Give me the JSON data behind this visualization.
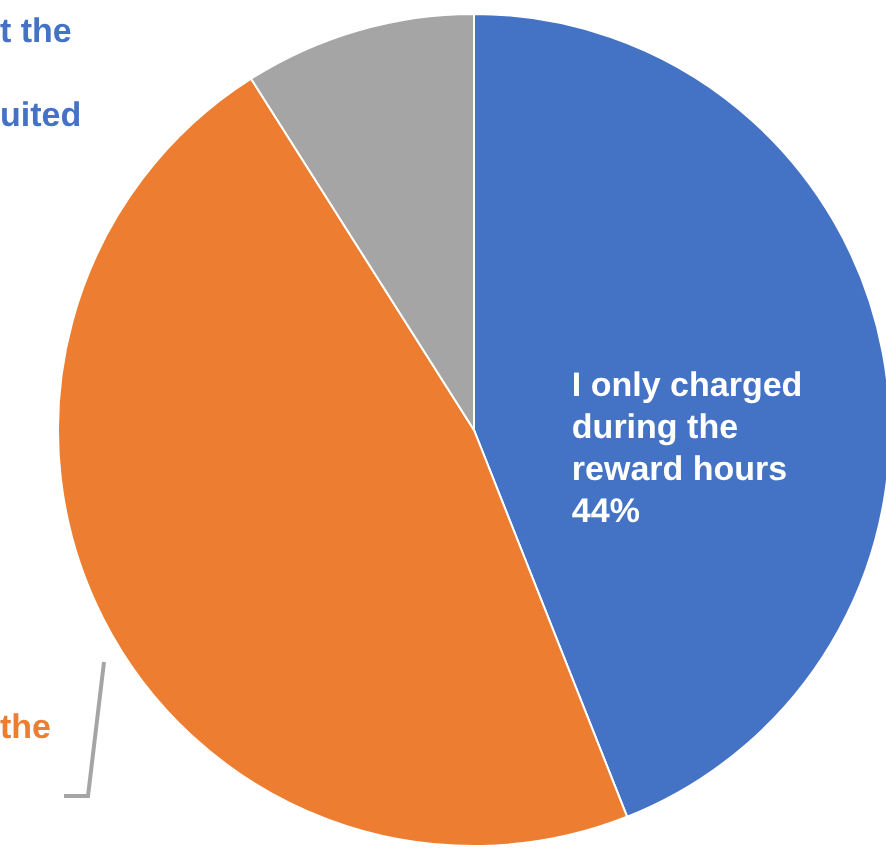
{
  "chart_data": {
    "type": "pie",
    "categories": [
      "I only charged during the reward hours",
      null,
      null
    ],
    "values": [
      44,
      47,
      9
    ],
    "value_labels": [
      "44%",
      null,
      null
    ],
    "colors": [
      "#4472c4",
      "#ed7d31",
      "#a5a5a5"
    ],
    "annotations": [
      "t the",
      "uited",
      "the"
    ]
  }
}
